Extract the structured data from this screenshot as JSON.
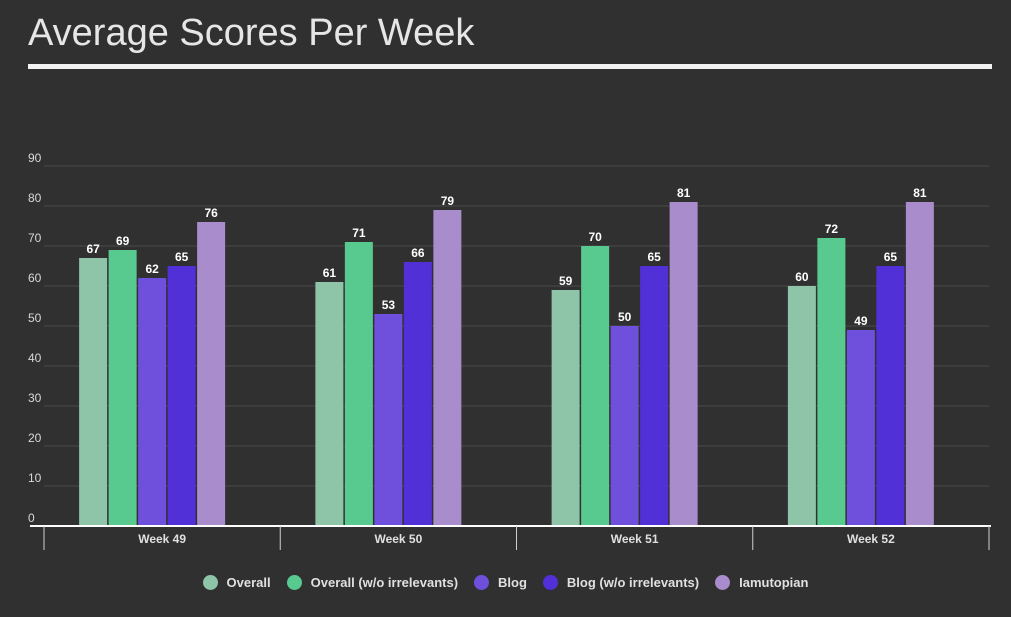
{
  "chart_data": {
    "type": "bar",
    "title": "Average Scores Per Week",
    "categories": [
      "Week 49",
      "Week 50",
      "Week 51",
      "Week 52"
    ],
    "series": [
      {
        "name": "Overall",
        "color": "#8ec4a8",
        "values": [
          67,
          61,
          59,
          60
        ]
      },
      {
        "name": "Overall (w/o irrelevants)",
        "color": "#58c98f",
        "values": [
          69,
          71,
          70,
          72
        ]
      },
      {
        "name": "Blog",
        "color": "#6e50dc",
        "values": [
          62,
          53,
          50,
          49
        ]
      },
      {
        "name": "Blog (w/o irrelevants)",
        "color": "#5230d8",
        "values": [
          65,
          66,
          65,
          65
        ]
      },
      {
        "name": "Iamutopian",
        "color": "#a88ccc",
        "values": [
          76,
          79,
          81,
          81
        ]
      }
    ],
    "ylim": [
      0,
      90
    ],
    "yticks": [
      0,
      10,
      20,
      30,
      40,
      50,
      60,
      70,
      80,
      90
    ],
    "grid": true,
    "legend_position": "bottom",
    "data_labels": true
  }
}
